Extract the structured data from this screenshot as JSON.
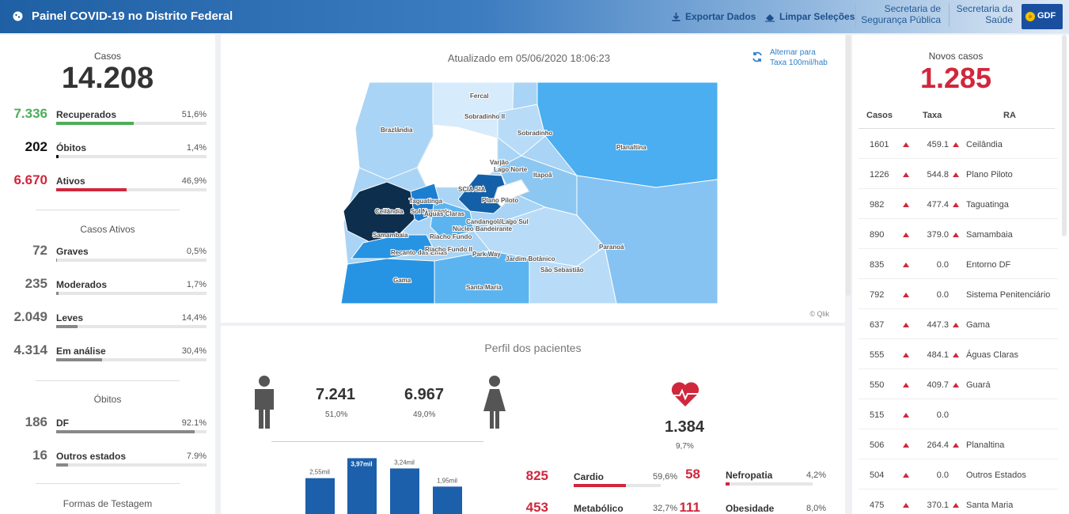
{
  "header": {
    "title": "Painel COVID-19 no Distrito Federal",
    "export_label": "Exportar Dados",
    "clear_label": "Limpar Seleções",
    "sec1_line1": "Secretaria de",
    "sec1_line2": "Segurança Pública",
    "sec2_line1": "Secretaria da",
    "sec2_line2": "Saúde",
    "gdf_logo": "GDF",
    "colors": {
      "brand": "#1f5fa3"
    }
  },
  "left": {
    "cases_label": "Casos",
    "cases_value": "14.208",
    "rows": [
      {
        "value": "7.336",
        "label": "Recuperados",
        "pct": "51,6%",
        "fill": 0.516,
        "color": "#4cae5a"
      },
      {
        "value": "202",
        "label": "Óbitos",
        "pct": "1,4%",
        "fill": 0.014,
        "color": "#111111"
      },
      {
        "value": "6.670",
        "label": "Ativos",
        "pct": "46,9%",
        "fill": 0.469,
        "color": "#d0273d"
      }
    ],
    "active_title": "Casos Ativos",
    "active_rows": [
      {
        "value": "72",
        "label": "Graves",
        "pct": "0,5%",
        "fill": 0.005
      },
      {
        "value": "235",
        "label": "Moderados",
        "pct": "1,7%",
        "fill": 0.017
      },
      {
        "value": "2.049",
        "label": "Leves",
        "pct": "14,4%",
        "fill": 0.144
      },
      {
        "value": "4.314",
        "label": "Em análise",
        "pct": "30,4%",
        "fill": 0.304
      }
    ],
    "deaths_title": "Óbitos",
    "deaths_rows": [
      {
        "value": "186",
        "label": "DF",
        "pct": "92.1%",
        "fill": 0.921
      },
      {
        "value": "16",
        "label": "Outros estados",
        "pct": "7.9%",
        "fill": 0.079
      }
    ],
    "testing_title": "Formas de Testagem"
  },
  "map": {
    "updated": "Atualizado em 05/06/2020 18:06:23",
    "toggle_line1": "Alternar para",
    "toggle_line2": "Taxa 100mil/hab",
    "credit": "© Qlik",
    "labels": [
      "Fercal",
      "Sobradinho II",
      "Brazlândia",
      "Sobradinho",
      "Planaltina",
      "Varjão",
      "Lago Norte",
      "Itapoã",
      "SCIA SIA",
      "Ceilândia",
      "Taguatinga",
      "Sol Nascente",
      "Águas Claras",
      "Plano Piloto",
      "Candangolândia",
      "Lago Sul",
      "Núcleo Bandeirante",
      "Riacho Fundo",
      "Samambaia",
      "Recanto das Emas",
      "Riacho Fundo II",
      "Park Way",
      "Jardim Botânico",
      "Paranoá",
      "São Sebastião",
      "Gama",
      "Santa Maria"
    ]
  },
  "profile": {
    "title": "Perfil dos pacientes",
    "male_value": "7.241",
    "male_pct": "51,0%",
    "female_value": "6.967",
    "female_pct": "49,0%",
    "comorb_value": "1.384",
    "comorb_pct": "9,7%",
    "age_bars": [
      {
        "label": "2,55mil",
        "value": 2.55
      },
      {
        "label": "3,97mil",
        "value": 3.97
      },
      {
        "label": "3,24mil",
        "value": 3.24
      },
      {
        "label": "1,95mil",
        "value": 1.95
      }
    ],
    "comorbidities": [
      {
        "value": "825",
        "label": "Cardio",
        "pct": "59,6%",
        "fill": 0.596
      },
      {
        "value": "58",
        "label": "Nefropatia",
        "pct": "4,2%",
        "fill": 0.042
      },
      {
        "value": "453",
        "label": "Metabólico",
        "pct": "32,7%",
        "fill": 0.327
      },
      {
        "value": "111",
        "label": "Obesidade",
        "pct": "8,0%",
        "fill": 0.08
      }
    ]
  },
  "right": {
    "new_label": "Novos casos",
    "new_value": "1.285",
    "col_cases": "Casos",
    "col_rate": "Taxa",
    "col_ra": "RA",
    "rows": [
      {
        "cases": "1601",
        "rate": "459.1",
        "ra": "Ceilândia",
        "up": true
      },
      {
        "cases": "1226",
        "rate": "544.8",
        "ra": "Plano Piloto",
        "up": true
      },
      {
        "cases": "982",
        "rate": "477.4",
        "ra": "Taguatinga",
        "up": true
      },
      {
        "cases": "890",
        "rate": "379.0",
        "ra": "Samambaia",
        "up": true
      },
      {
        "cases": "835",
        "rate": "0.0",
        "ra": "Entorno DF",
        "up": false
      },
      {
        "cases": "792",
        "rate": "0.0",
        "ra": "Sistema Penitenciário",
        "up": false
      },
      {
        "cases": "637",
        "rate": "447.3",
        "ra": "Gama",
        "up": true
      },
      {
        "cases": "555",
        "rate": "484.1",
        "ra": "Águas Claras",
        "up": true
      },
      {
        "cases": "550",
        "rate": "409.7",
        "ra": "Guará",
        "up": true
      },
      {
        "cases": "515",
        "rate": "0.0",
        "ra": "",
        "up": false
      },
      {
        "cases": "506",
        "rate": "264.4",
        "ra": "Planaltina",
        "up": true
      },
      {
        "cases": "504",
        "rate": "0.0",
        "ra": "Outros Estados",
        "up": false
      },
      {
        "cases": "475",
        "rate": "370.1",
        "ra": "Santa Maria",
        "up": true
      }
    ]
  }
}
